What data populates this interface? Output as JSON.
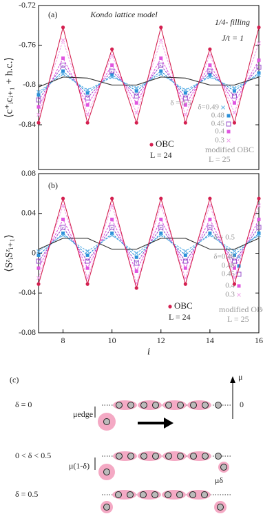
{
  "chart_data": [
    {
      "type": "line",
      "annotations": [
        "(a)",
        "Kondo lattice model",
        "1/4- filling",
        "J/t = 1",
        "L = 24",
        "modified OBC",
        "L = 25"
      ],
      "ylabel": "⟨c⁺ᵢcᵢ₊₁ + h.c.⟩",
      "x": [
        7,
        8,
        9,
        10,
        11,
        12,
        13,
        14,
        15,
        16
      ],
      "xlim": [
        7,
        16
      ],
      "ylim": [
        -0.885,
        -0.72
      ],
      "yticks": [
        -0.72,
        -0.76,
        -0.8,
        -0.84
      ],
      "series": [
        {
          "name": "0.3",
          "color": "#f2a6ec",
          "marker": "x",
          "values": [
            -0.83,
            -0.755,
            -0.83,
            -0.77,
            -0.828,
            -0.755,
            -0.83,
            -0.77,
            -0.828,
            -0.758
          ]
        },
        {
          "name": "0.4",
          "color": "#e055e0",
          "marker": "square-filled",
          "values": [
            -0.822,
            -0.773,
            -0.82,
            -0.78,
            -0.818,
            -0.773,
            -0.82,
            -0.78,
            -0.818,
            -0.775
          ]
        },
        {
          "name": "0.45",
          "color": "#9a4fcb",
          "marker": "square-open",
          "values": [
            -0.815,
            -0.78,
            -0.813,
            -0.786,
            -0.811,
            -0.78,
            -0.813,
            -0.786,
            -0.811,
            -0.782
          ]
        },
        {
          "name": "0.48",
          "color": "#2a8fd8",
          "marker": "square-filled",
          "values": [
            -0.81,
            -0.786,
            -0.808,
            -0.79,
            -0.806,
            -0.786,
            -0.808,
            -0.79,
            -0.806,
            -0.788
          ]
        },
        {
          "name": "δ=0.49",
          "color": "#5fb2e6",
          "marker": "x",
          "values": [
            -0.807,
            -0.789,
            -0.805,
            -0.792,
            -0.803,
            -0.789,
            -0.805,
            -0.792,
            -0.803,
            -0.79
          ]
        },
        {
          "name": "δ = 0.5",
          "color": "#333333",
          "marker": "none",
          "values": [
            -0.802,
            -0.792,
            -0.793,
            -0.8,
            -0.8,
            -0.792,
            -0.793,
            -0.8,
            -0.8,
            -0.792
          ]
        },
        {
          "name": "OBC",
          "color": "#d42050",
          "marker": "circle",
          "values": [
            -0.838,
            -0.742,
            -0.838,
            -0.764,
            -0.838,
            -0.742,
            -0.838,
            -0.764,
            -0.838,
            -0.742
          ]
        }
      ]
    },
    {
      "type": "line",
      "annotations": [
        "(b)",
        "L = 24",
        "modified OBC",
        "L = 25"
      ],
      "ylabel": "⟨SᶻᵢSᶻᵢ₊₁⟩",
      "xlabel": "i",
      "x": [
        7,
        8,
        9,
        10,
        11,
        12,
        13,
        14,
        15,
        16
      ],
      "xlim": [
        7,
        16
      ],
      "ylim": [
        -0.08,
        0.08
      ],
      "yticks": [
        -0.08,
        -0.04,
        0,
        0.04,
        0.08
      ],
      "xticks": [
        8,
        10,
        12,
        14,
        16
      ],
      "series": [
        {
          "name": "0.3",
          "color": "#f2a6ec",
          "marker": "x",
          "values": [
            -0.025,
            0.048,
            -0.025,
            0.048,
            -0.03,
            0.048,
            -0.025,
            0.048,
            -0.025,
            0.048
          ]
        },
        {
          "name": "0.4",
          "color": "#e055e0",
          "marker": "square-filled",
          "values": [
            -0.015,
            0.034,
            -0.015,
            0.034,
            -0.018,
            0.034,
            -0.015,
            0.034,
            -0.015,
            0.034
          ]
        },
        {
          "name": "0.45",
          "color": "#9a4fcb",
          "marker": "square-open",
          "values": [
            -0.008,
            0.026,
            -0.008,
            0.026,
            -0.01,
            0.026,
            -0.008,
            0.026,
            -0.008,
            0.026
          ]
        },
        {
          "name": "0.48",
          "color": "#2a8fd8",
          "marker": "square-filled",
          "values": [
            -0.002,
            0.02,
            -0.002,
            0.02,
            -0.004,
            0.02,
            -0.002,
            0.02,
            -0.002,
            0.02
          ]
        },
        {
          "name": "δ=0.49",
          "color": "#5fb2e6",
          "marker": "x",
          "values": [
            0.002,
            0.018,
            0.002,
            0.018,
            0,
            0.018,
            0.002,
            0.018,
            0.002,
            0.018
          ]
        },
        {
          "name": "δ = 0.5",
          "color": "#333333",
          "marker": "none",
          "values": [
            0.004,
            0.015,
            0.015,
            0.004,
            0.004,
            0.015,
            0.015,
            0.004,
            0.004,
            0.015
          ]
        },
        {
          "name": "OBC",
          "color": "#d42050",
          "marker": "circle",
          "values": [
            -0.031,
            0.055,
            -0.031,
            0.055,
            -0.035,
            0.055,
            -0.031,
            0.055,
            -0.031,
            0.055
          ]
        }
      ]
    }
  ],
  "diagram": {
    "panel": "(c)",
    "axis": "μ",
    "zero": "0",
    "rows": [
      "δ = 0",
      "0 < δ < 0.5",
      "δ = 0.5"
    ],
    "labels": [
      "μedge",
      "μ(1-δ)",
      "μδ"
    ]
  }
}
